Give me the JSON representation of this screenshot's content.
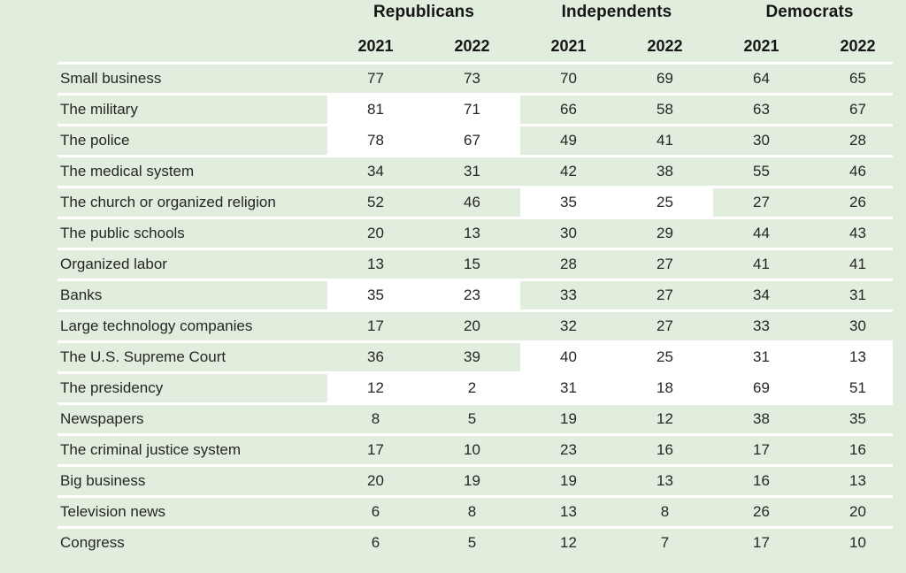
{
  "colors": {
    "background": "#e1eedd",
    "separator": "#ffffff",
    "highlight": "#ffffff",
    "text": "#262626",
    "header_text": "#161616"
  },
  "table": {
    "groups": [
      {
        "label": "Republicans",
        "years": [
          "2021",
          "2022"
        ]
      },
      {
        "label": "Independents",
        "years": [
          "2021",
          "2022"
        ]
      },
      {
        "label": "Democrats",
        "years": [
          "2021",
          "2022"
        ]
      }
    ],
    "rows": [
      {
        "label": "Small business",
        "values": [
          77,
          73,
          70,
          69,
          64,
          65
        ],
        "highlight": []
      },
      {
        "label": "The military",
        "values": [
          81,
          71,
          66,
          58,
          63,
          67
        ],
        "highlight": [
          "Republicans"
        ]
      },
      {
        "label": "The police",
        "values": [
          78,
          67,
          49,
          41,
          30,
          28
        ],
        "highlight": [
          "Republicans"
        ]
      },
      {
        "label": "The medical system",
        "values": [
          34,
          31,
          42,
          38,
          55,
          46
        ],
        "highlight": []
      },
      {
        "label": "The church or organized religion",
        "values": [
          52,
          46,
          35,
          25,
          27,
          26
        ],
        "highlight": [
          "Independents"
        ]
      },
      {
        "label": "The public schools",
        "values": [
          20,
          13,
          30,
          29,
          44,
          43
        ],
        "highlight": []
      },
      {
        "label": "Organized labor",
        "values": [
          13,
          15,
          28,
          27,
          41,
          41
        ],
        "highlight": []
      },
      {
        "label": "Banks",
        "values": [
          35,
          23,
          33,
          27,
          34,
          31
        ],
        "highlight": [
          "Republicans"
        ]
      },
      {
        "label": "Large technology companies",
        "values": [
          17,
          20,
          32,
          27,
          33,
          30
        ],
        "highlight": []
      },
      {
        "label": "The U.S. Supreme Court",
        "values": [
          36,
          39,
          40,
          25,
          31,
          13
        ],
        "highlight": [
          "Independents",
          "Democrats"
        ]
      },
      {
        "label": "The presidency",
        "values": [
          12,
          2,
          31,
          18,
          69,
          51
        ],
        "highlight": [
          "Republicans",
          "Independents",
          "Democrats"
        ]
      },
      {
        "label": "Newspapers",
        "values": [
          8,
          5,
          19,
          12,
          38,
          35
        ],
        "highlight": []
      },
      {
        "label": "The criminal justice system",
        "values": [
          17,
          10,
          23,
          16,
          17,
          16
        ],
        "highlight": []
      },
      {
        "label": "Big business",
        "values": [
          20,
          19,
          19,
          13,
          16,
          13
        ],
        "highlight": []
      },
      {
        "label": "Television news",
        "values": [
          6,
          8,
          13,
          8,
          26,
          20
        ],
        "highlight": []
      },
      {
        "label": "Congress",
        "values": [
          6,
          5,
          12,
          7,
          17,
          10
        ],
        "highlight": []
      }
    ]
  },
  "chart_data": {
    "type": "table",
    "categories": [
      "Small business",
      "The military",
      "The police",
      "The medical system",
      "The church or organized religion",
      "The public schools",
      "Organized labor",
      "Banks",
      "Large technology companies",
      "The U.S. Supreme Court",
      "The presidency",
      "Newspapers",
      "The criminal justice system",
      "Big business",
      "Television news",
      "Congress"
    ],
    "series": [
      {
        "name": "Republicans 2021",
        "values": [
          77,
          81,
          78,
          34,
          52,
          20,
          13,
          35,
          17,
          36,
          12,
          8,
          17,
          20,
          6,
          6
        ]
      },
      {
        "name": "Republicans 2022",
        "values": [
          73,
          71,
          67,
          31,
          46,
          13,
          15,
          23,
          20,
          39,
          2,
          5,
          10,
          19,
          8,
          5
        ]
      },
      {
        "name": "Independents 2021",
        "values": [
          70,
          66,
          49,
          42,
          35,
          30,
          28,
          33,
          32,
          40,
          31,
          19,
          23,
          19,
          13,
          12
        ]
      },
      {
        "name": "Independents 2022",
        "values": [
          69,
          58,
          41,
          38,
          25,
          29,
          27,
          27,
          27,
          25,
          18,
          12,
          16,
          13,
          8,
          7
        ]
      },
      {
        "name": "Democrats 2021",
        "values": [
          64,
          63,
          30,
          55,
          27,
          44,
          41,
          34,
          33,
          31,
          69,
          38,
          17,
          16,
          26,
          17
        ]
      },
      {
        "name": "Democrats 2022",
        "values": [
          65,
          67,
          28,
          46,
          26,
          43,
          41,
          31,
          30,
          13,
          51,
          35,
          16,
          13,
          20,
          10
        ]
      }
    ],
    "highlighted_cells_note": "white background marks cells: military/police/banks/presidency (Republicans), church/Supreme Court/presidency (Independents), Supreme Court/presidency (Democrats)"
  }
}
